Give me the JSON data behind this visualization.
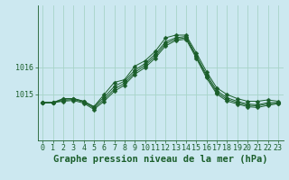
{
  "title": "Graphe pression niveau de la mer (hPa)",
  "background_color": "#cce8f0",
  "grid_color": "#a8d4c8",
  "line_color": "#1a5e2a",
  "x_labels": [
    "0",
    "1",
    "2",
    "3",
    "4",
    "5",
    "6",
    "7",
    "8",
    "9",
    "10",
    "11",
    "12",
    "13",
    "14",
    "15",
    "16",
    "17",
    "18",
    "19",
    "20",
    "21",
    "22",
    "23"
  ],
  "series": [
    [
      1014.7,
      1014.7,
      1014.85,
      1014.85,
      1014.75,
      1014.55,
      1015.0,
      1015.45,
      1015.55,
      1016.05,
      1016.25,
      1016.6,
      1017.1,
      1017.2,
      1017.2,
      1016.55,
      1015.85,
      1015.25,
      1015.0,
      1014.85,
      1014.75,
      1014.75,
      1014.8,
      1014.75
    ],
    [
      1014.7,
      1014.7,
      1014.82,
      1014.85,
      1014.75,
      1014.55,
      1014.9,
      1015.3,
      1015.5,
      1015.9,
      1016.15,
      1016.5,
      1016.95,
      1017.1,
      1017.15,
      1016.45,
      1015.75,
      1015.15,
      1014.88,
      1014.75,
      1014.65,
      1014.62,
      1014.7,
      1014.7
    ],
    [
      1014.7,
      1014.7,
      1014.78,
      1014.82,
      1014.72,
      1014.5,
      1014.82,
      1015.2,
      1015.42,
      1015.82,
      1016.08,
      1016.42,
      1016.88,
      1017.05,
      1017.1,
      1016.4,
      1015.68,
      1015.08,
      1014.82,
      1014.7,
      1014.6,
      1014.58,
      1014.65,
      1014.68
    ],
    [
      1014.7,
      1014.7,
      1014.75,
      1014.78,
      1014.68,
      1014.45,
      1014.75,
      1015.12,
      1015.35,
      1015.75,
      1016.0,
      1016.35,
      1016.8,
      1017.0,
      1017.05,
      1016.35,
      1015.62,
      1015.02,
      1014.76,
      1014.65,
      1014.55,
      1014.52,
      1014.6,
      1014.66
    ]
  ],
  "yticks": [
    1015,
    1016
  ],
  "ylim": [
    1013.3,
    1018.3
  ],
  "xlim": [
    -0.5,
    23.5
  ],
  "title_fontsize": 7.5,
  "tick_fontsize": 6.0,
  "marker_size": 2.5,
  "figsize": [
    3.2,
    2.0
  ],
  "dpi": 100
}
